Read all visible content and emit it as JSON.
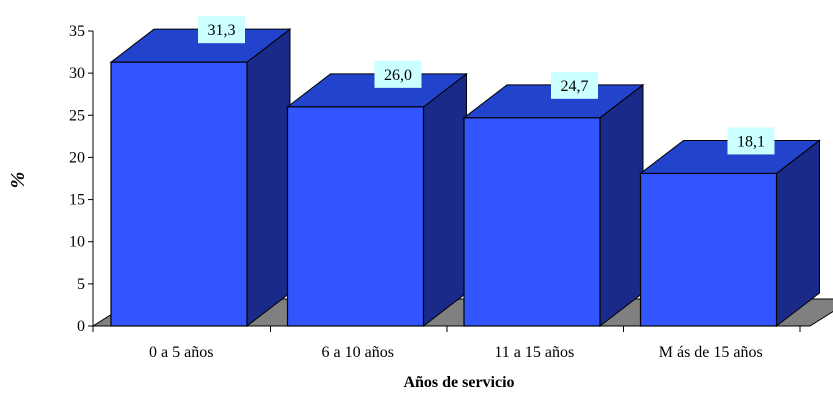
{
  "chart_data": {
    "type": "bar",
    "categories": [
      "0 a 5 años",
      "6 a 10 años",
      "11 a 15 años",
      "M ás de 15 años"
    ],
    "values": [
      31.3,
      26.0,
      24.7,
      18.1
    ],
    "data_labels": [
      "31,3",
      "26,0",
      "24,7",
      "18,1"
    ],
    "xlabel": "Años de servicio",
    "ylabel": "%",
    "ylim": [
      0,
      35
    ],
    "yticks": [
      "0",
      "5",
      "10",
      "15",
      "20",
      "25",
      "30",
      "35"
    ],
    "grid": false,
    "legend": "none",
    "colors": {
      "bar_front": "#3355ff",
      "bar_top": "#2244cc",
      "bar_side": "#1a2a88",
      "floor": "#808080",
      "label_bg": "#ccffff"
    }
  }
}
